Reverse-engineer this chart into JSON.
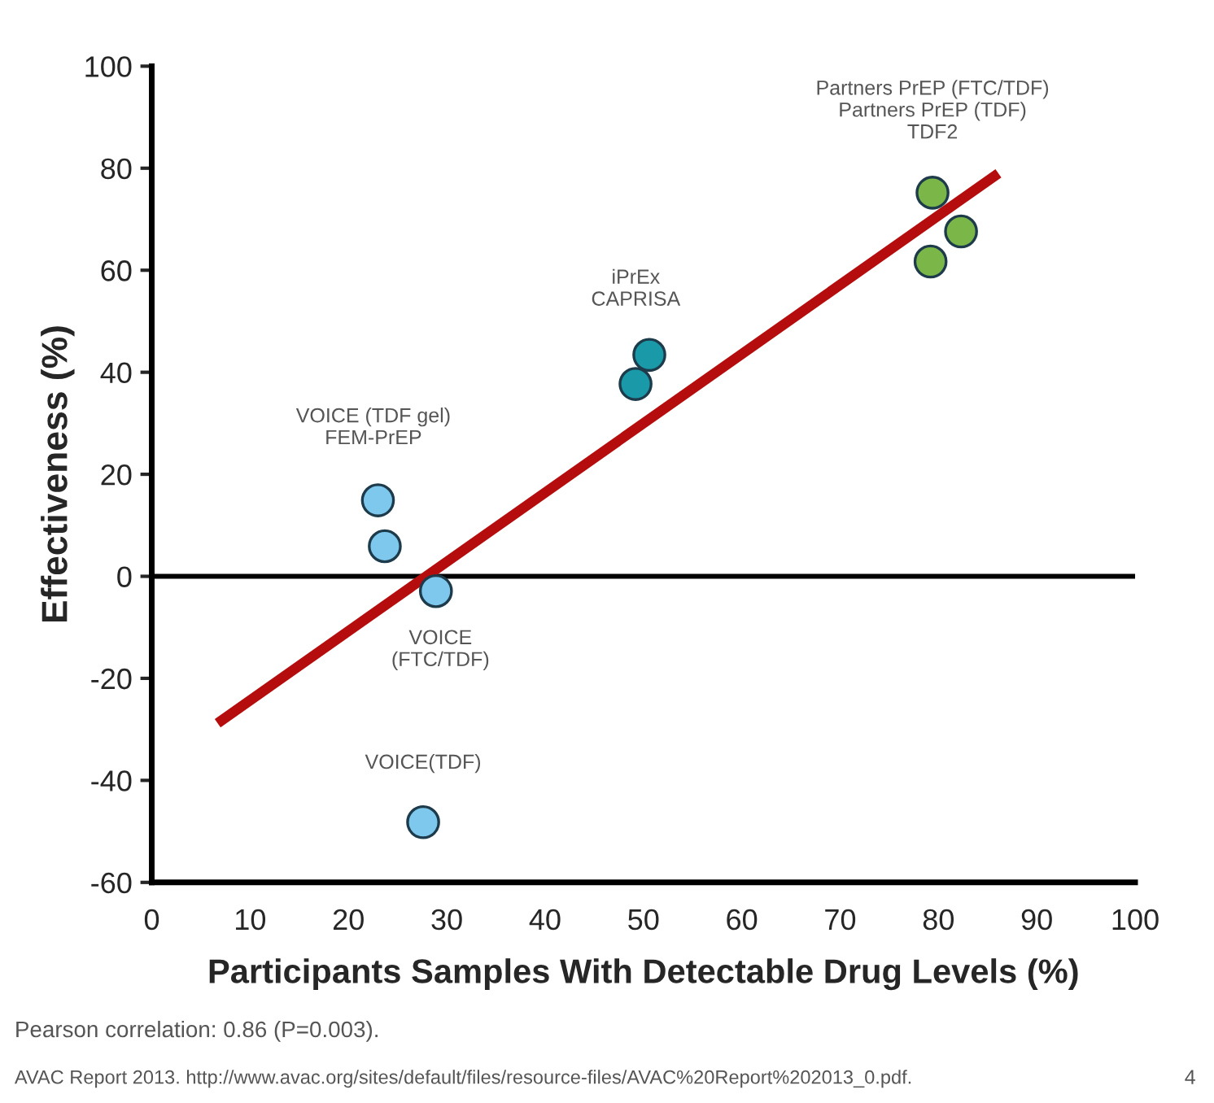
{
  "chart_data": {
    "type": "scatter",
    "xlabel": "Participants Samples With Detectable Drug Levels (%)",
    "ylabel": "Effectiveness (%)",
    "xlim": [
      0,
      100
    ],
    "xticks": [
      0,
      10,
      20,
      30,
      40,
      50,
      60,
      70,
      80,
      90,
      100
    ],
    "ylim": [
      -60,
      100
    ],
    "yticks": [
      -60,
      -40,
      -20,
      0,
      20,
      40,
      60,
      80,
      100
    ],
    "grid": false,
    "legend": false,
    "marker": "circle",
    "series": [
      {
        "color": "#7ec8ee",
        "x": [
          23.0,
          23.7,
          28.9,
          27.6
        ],
        "values": [
          14.9,
          5.9,
          -2.9,
          -48.2
        ]
      },
      {
        "color": "#1a9aa8",
        "x": [
          49.2,
          50.6
        ],
        "values": [
          37.7,
          43.4
        ]
      },
      {
        "color": "#7ab648",
        "x": [
          79.4,
          82.3,
          79.2
        ],
        "values": [
          75.2,
          67.6,
          61.7
        ]
      },
      {
        "type": "line",
        "marker": "none",
        "color": "#b50d0d",
        "line_style": "solid",
        "x": [
          6.7,
          86.1
        ],
        "values": [
          -28.8,
          79.0
        ]
      }
    ],
    "ref_lines": [
      {
        "axis": "y",
        "value": 0,
        "color": "#000000",
        "line_style": "solid"
      }
    ],
    "annotations": [
      {
        "text": "VOICE (TDF gel)\nFEM-PrEP",
        "x": 23.0,
        "y": 14.9
      },
      {
        "text": "iPrEx\nCAPRISA",
        "x": 50.6,
        "y": 43.4
      },
      {
        "text": "Partners PrEP (FTC/TDF)\nPartners PrEP (TDF)\nTDF2",
        "x": 79.4,
        "y": 75.2
      },
      {
        "text": "VOICE\n(FTC/TDF)",
        "x": 28.9,
        "y": -2.9
      },
      {
        "text": "VOICE(TDF)",
        "x": 27.6,
        "y": -48.2
      },
      "Pearson correlation: 0.86 (P=0.003).",
      "AVAC Report 2013. http://www.avac.org/sites/default/files/resource-files/AVAC%20Report%202013_0.pdf.",
      "4"
    ]
  }
}
